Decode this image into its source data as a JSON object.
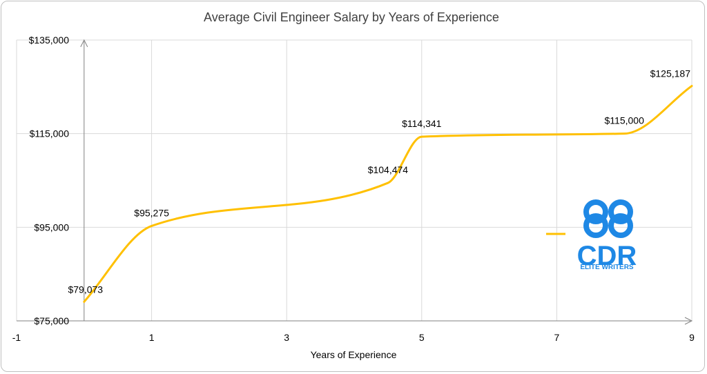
{
  "chart_data": {
    "type": "line",
    "title": "Average Civil Engineer Salary by Years of Experience",
    "xlabel": "Years of Experience",
    "ylabel": "",
    "xlim": [
      -1,
      9
    ],
    "ylim": [
      75000,
      135000
    ],
    "x_ticks": [
      -1,
      1,
      3,
      5,
      7,
      9
    ],
    "y_ticks": [
      75000,
      95000,
      115000,
      135000
    ],
    "x_tick_labels": [
      "-1",
      "1",
      "3",
      "5",
      "7",
      "9"
    ],
    "y_tick_labels": [
      "$75,000",
      "$95,000",
      "$115,000",
      "$135,000"
    ],
    "grid": true,
    "smooth": true,
    "legend_position": "right",
    "series": [
      {
        "color": "#FFC000",
        "points": [
          {
            "x": 0,
            "y": 79073,
            "label": "$79,073"
          },
          {
            "x": 1,
            "y": 95275,
            "label": "$95,275"
          },
          {
            "x": 4.5,
            "y": 104474,
            "label": "$104,474"
          },
          {
            "x": 5,
            "y": 114341,
            "label": "$114,341"
          },
          {
            "x": 8,
            "y": 115000,
            "label": "$115,000"
          },
          {
            "x": 9,
            "y": 125187,
            "label": "$125,187"
          }
        ]
      }
    ]
  },
  "logo": {
    "main_text": "CDR",
    "sub_text": "ELITE WRITERS",
    "color": "#1E88E5"
  }
}
